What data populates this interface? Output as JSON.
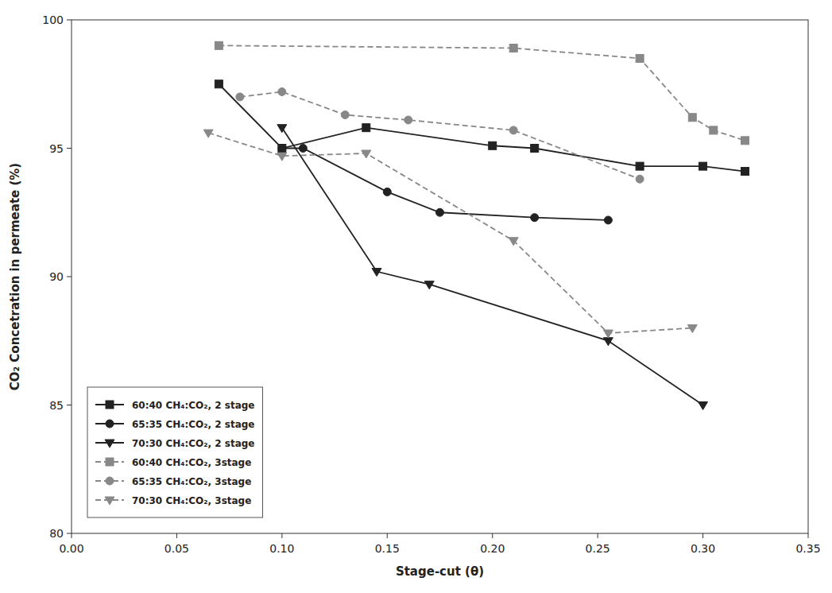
{
  "chart_data": {
    "type": "line",
    "xlabel": "Stage-cut (θ)",
    "ylabel": "CO₂ Concetration in permeate (%)",
    "xlim": [
      0.0,
      0.35
    ],
    "ylim": [
      80,
      100
    ],
    "xticks": [
      {
        "value": 0.0,
        "label": "0.00"
      },
      {
        "value": 0.05,
        "label": "0.05"
      },
      {
        "value": 0.1,
        "label": "0.10"
      },
      {
        "value": 0.15,
        "label": "0.15"
      },
      {
        "value": 0.2,
        "label": "0.20"
      },
      {
        "value": 0.25,
        "label": "0.25"
      },
      {
        "value": 0.3,
        "label": "0.30"
      },
      {
        "value": 0.35,
        "label": "0.35"
      }
    ],
    "yticks": [
      80,
      85,
      90,
      95,
      100
    ],
    "grid": false,
    "legend": "lower left",
    "series": [
      {
        "name": "60:40 CH₄:CO₂, 2 stage",
        "color": "#222222",
        "marker": "square",
        "line_style": "solid",
        "x": [
          0.07,
          0.1,
          0.14,
          0.2,
          0.22,
          0.27,
          0.3,
          0.32
        ],
        "values": [
          97.5,
          95.0,
          95.8,
          95.1,
          95.0,
          94.3,
          94.3,
          94.1
        ]
      },
      {
        "name": "65:35 CH₄:CO₂, 2 stage",
        "color": "#222222",
        "marker": "circle",
        "line_style": "solid",
        "x": [
          0.1,
          0.11,
          0.15,
          0.175,
          0.22,
          0.255
        ],
        "values": [
          95.0,
          95.0,
          93.3,
          92.5,
          92.3,
          92.2
        ]
      },
      {
        "name": "70:30 CH₄:CO₂, 2 stage",
        "color": "#222222",
        "marker": "triangle-down",
        "line_style": "solid",
        "x": [
          0.1,
          0.145,
          0.17,
          0.255,
          0.3
        ],
        "values": [
          95.8,
          90.2,
          89.7,
          87.5,
          85.0
        ]
      },
      {
        "name": "60:40 CH₄:CO₂, 3stage",
        "color": "#888888",
        "marker": "square",
        "line_style": "dashed",
        "x": [
          0.07,
          0.21,
          0.27,
          0.295,
          0.305,
          0.32
        ],
        "values": [
          99.0,
          98.9,
          98.5,
          96.2,
          95.7,
          95.3
        ]
      },
      {
        "name": "65:35 CH₄:CO₂, 3stage",
        "color": "#888888",
        "marker": "circle",
        "line_style": "dashed",
        "x": [
          0.08,
          0.1,
          0.13,
          0.16,
          0.21,
          0.27
        ],
        "values": [
          97.0,
          97.2,
          96.3,
          96.1,
          95.7,
          93.8
        ]
      },
      {
        "name": "70:30 CH₄:CO₂, 3stage",
        "color": "#888888",
        "marker": "triangle-down",
        "line_style": "dashed",
        "x": [
          0.065,
          0.1,
          0.14,
          0.21,
          0.255,
          0.295
        ],
        "values": [
          95.6,
          94.7,
          94.8,
          91.4,
          87.8,
          88.0
        ]
      }
    ]
  }
}
